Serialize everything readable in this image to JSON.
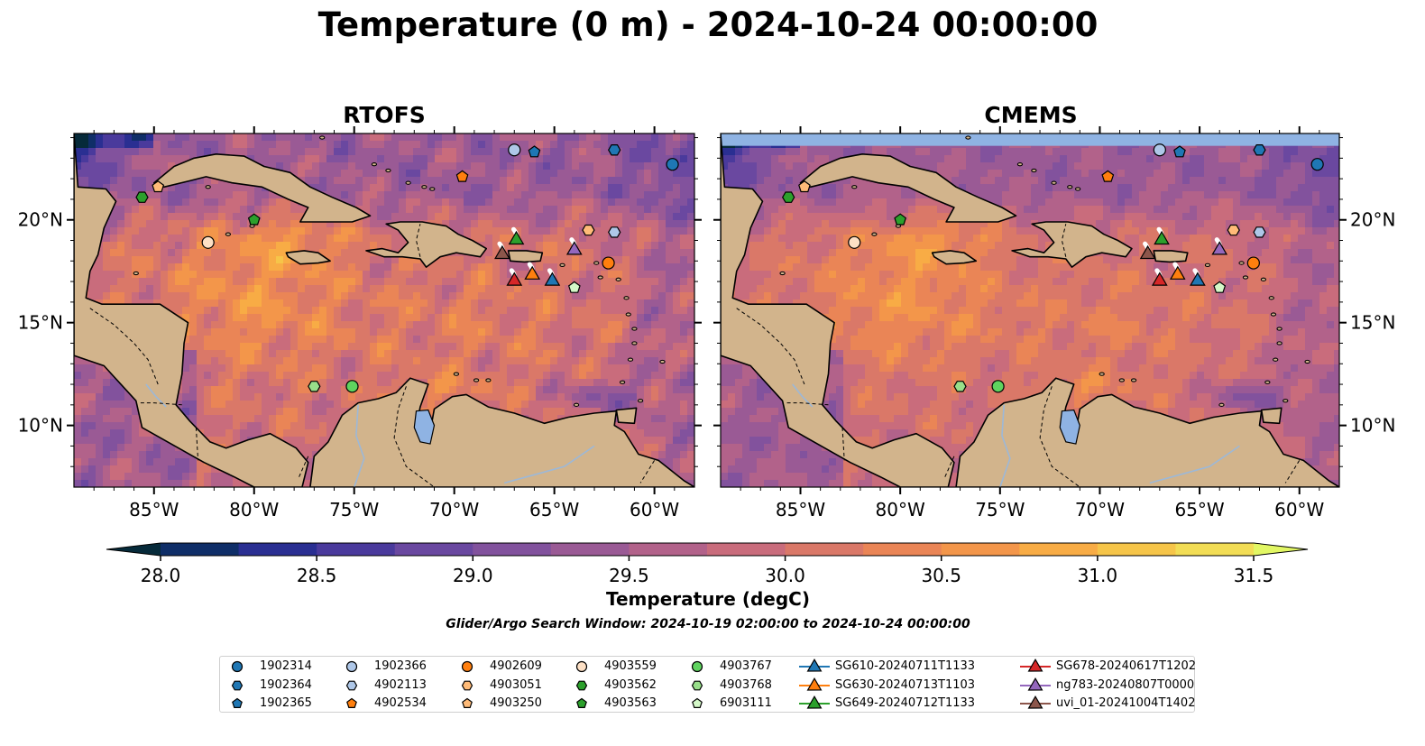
{
  "figure": {
    "title": "Temperature (0 m) - 2024-10-24 00:00:00",
    "search_window": "Glider/Argo Search Window: 2024-10-19 02:00:00 to 2024-10-24 00:00:00"
  },
  "colors": {
    "land": "#d2b48c",
    "lake": "#8fb3e3",
    "river": "#9cb8d8",
    "colormap": [
      "#062a3a",
      "#0f2e68",
      "#2a2f92",
      "#4a3a9c",
      "#6a48a0",
      "#82529d",
      "#9a5a95",
      "#b2628a",
      "#c96c7c",
      "#da7868",
      "#ea8556",
      "#f3964a",
      "#f8ac45",
      "#f6c549",
      "#f2dd55",
      "#e2f764"
    ]
  },
  "chart_data": {
    "type": "heatmap",
    "variable": "Temperature",
    "depth": "0 m",
    "time": "2024-10-24 00:00:00",
    "panels": [
      {
        "title": "RTOFS"
      },
      {
        "title": "CMEMS"
      }
    ],
    "lon_range": [
      -89,
      -58
    ],
    "lat_range": [
      7,
      24.2
    ],
    "x_ticks": [
      -85,
      -80,
      -75,
      -70,
      -65,
      -60
    ],
    "x_tick_labels": [
      "85°W",
      "80°W",
      "75°W",
      "70°W",
      "65°W",
      "60°W"
    ],
    "y_ticks": [
      10,
      15,
      20
    ],
    "y_tick_labels": [
      "10°N",
      "15°N",
      "20°N"
    ],
    "colorbar": {
      "label": "Temperature (degC)",
      "range": [
        28.0,
        31.5
      ],
      "step": 0.25,
      "ticks": [
        28.0,
        28.5,
        29.0,
        29.5,
        30.0,
        30.5,
        31.0,
        31.5
      ],
      "tick_labels": [
        "28.0",
        "28.5",
        "29.0",
        "29.5",
        "30.0",
        "30.5",
        "31.0",
        "31.5"
      ],
      "extend": "both"
    },
    "argo_floats": [
      {
        "id": "1902314",
        "marker": "circle",
        "color": "#1f77b4",
        "lon": -59.1,
        "lat": 22.7
      },
      {
        "id": "1902364",
        "marker": "hexagon",
        "color": "#1f77b4",
        "lon": -62.0,
        "lat": 23.4
      },
      {
        "id": "1902365",
        "marker": "pentagon",
        "color": "#1f77b4",
        "lon": -66.0,
        "lat": 23.3
      },
      {
        "id": "1902366",
        "marker": "circle",
        "color": "#aec7e8",
        "lon": -67.0,
        "lat": 23.4
      },
      {
        "id": "4902113",
        "marker": "hexagon",
        "color": "#aec7e8",
        "lon": -62.0,
        "lat": 19.4
      },
      {
        "id": "4902534",
        "marker": "pentagon",
        "color": "#ff7f0e",
        "lon": -69.6,
        "lat": 22.1
      },
      {
        "id": "4902609",
        "marker": "circle",
        "color": "#ff7f0e",
        "lon": -62.3,
        "lat": 17.9
      },
      {
        "id": "4903051",
        "marker": "hexagon",
        "color": "#ffbb78",
        "lon": -63.3,
        "lat": 19.5
      },
      {
        "id": "4903250",
        "marker": "pentagon",
        "color": "#ffbb78",
        "lon": -84.8,
        "lat": 21.6
      },
      {
        "id": "4903559",
        "marker": "circle",
        "color": "#fde0c5",
        "lon": -82.3,
        "lat": 18.9
      },
      {
        "id": "4903562",
        "marker": "hexagon",
        "color": "#2ca02c",
        "lon": -85.6,
        "lat": 21.1
      },
      {
        "id": "4903563",
        "marker": "pentagon",
        "color": "#2ca02c",
        "lon": -80.0,
        "lat": 20.0
      },
      {
        "id": "4903767",
        "marker": "circle",
        "color": "#5fd35f",
        "lon": -75.1,
        "lat": 11.9
      },
      {
        "id": "4903768",
        "marker": "hexagon",
        "color": "#98df8a",
        "lon": -77.0,
        "lat": 11.9
      },
      {
        "id": "6903111",
        "marker": "pentagon",
        "color": "#d4f8c8",
        "lon": -64.0,
        "lat": 16.7
      }
    ],
    "gliders": [
      {
        "id": "SG610-20240711T1133",
        "color": "#1f77b4",
        "lon": -65.1,
        "lat": 17.1
      },
      {
        "id": "SG630-20240713T1103",
        "color": "#ff7f0e",
        "lon": -66.1,
        "lat": 17.4
      },
      {
        "id": "SG649-20240712T1133",
        "color": "#2ca02c",
        "lon": -66.9,
        "lat": 19.1
      },
      {
        "id": "SG678-20240617T1202",
        "color": "#d62728",
        "lon": -67.0,
        "lat": 17.1
      },
      {
        "id": "ng783-20240807T0000",
        "color": "#9467bd",
        "lon": -64.0,
        "lat": 18.6
      },
      {
        "id": "uvi_01-20241004T1402",
        "color": "#8c564b",
        "lon": -67.6,
        "lat": 18.4
      }
    ]
  }
}
